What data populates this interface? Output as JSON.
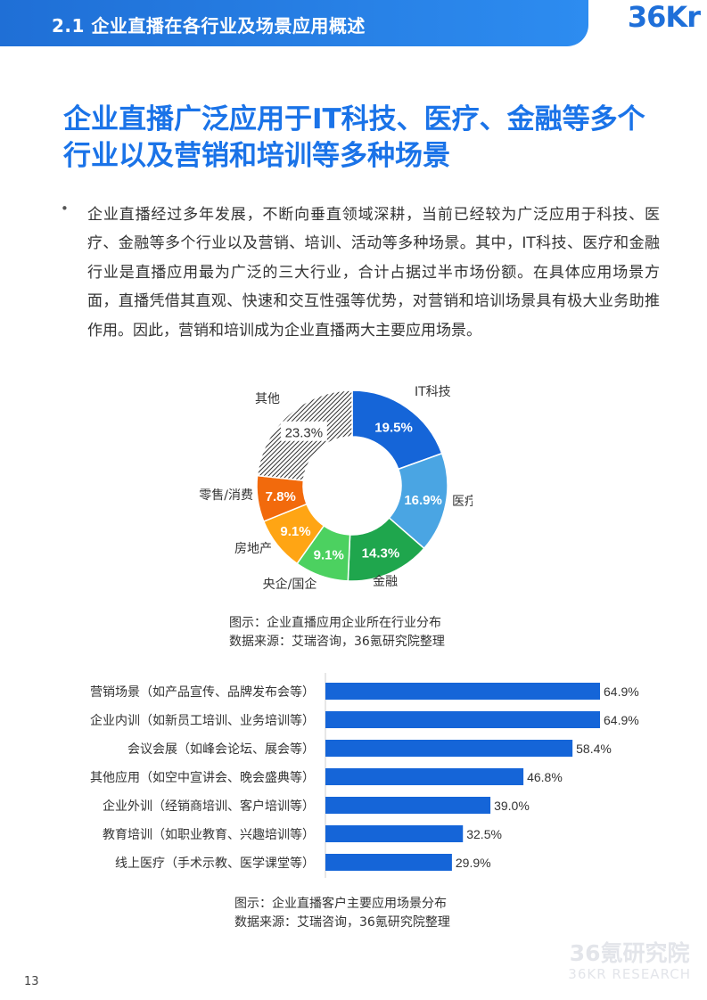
{
  "header": {
    "section_title": "2.1 企业直播在各行业及场景应用概述",
    "logo_text": "36Kr"
  },
  "headline": "企业直播广泛应用于IT科技、医疗、金融等多个行业以及营销和培训等多种场景",
  "bullet": {
    "symbol": "•",
    "text": "企业直播经过多年发展，不断向垂直领域深耕，当前已经较为广泛应用于科技、医疗、金融等多个行业以及营销、培训、活动等多种场景。其中，IT科技、医疗和金融行业是直播应用最为广泛的三大行业，合计占据过半市场份额。在具体应用场景方面，直播凭借其直观、快速和交互性强等优势，对营销和培训场景具有极大业务助推作用。因此，营销和培训成为企业直播两大主要应用场景。"
  },
  "chart_data": [
    {
      "type": "pie",
      "donut": true,
      "categories": [
        "IT科技",
        "医疗",
        "金融",
        "央企/国企",
        "房地产",
        "零售/消费",
        "其他"
      ],
      "values": [
        19.5,
        16.9,
        14.3,
        9.1,
        9.1,
        7.8,
        23.3
      ],
      "value_labels": [
        "19.5%",
        "16.9%",
        "14.3%",
        "9.1%",
        "9.1%",
        "7.8%",
        "23.3%"
      ],
      "colors": [
        "#1565d8",
        "#4aa5e3",
        "#1fa64d",
        "#4cd160",
        "#ffa514",
        "#f26a0c",
        "hatched"
      ],
      "caption": "图示：企业直播应用企业所在行业分布",
      "source": "数据来源：艾瑞咨询，36氪研究院整理"
    },
    {
      "type": "bar",
      "orientation": "horizontal",
      "categories": [
        "营销场景（如产品宣传、品牌发布会等）",
        "企业内训（如新员工培训、业务培训等）",
        "会议会展（如峰会论坛、展会等）",
        "其他应用（如空中宣讲会、晚会盛典等）",
        "企业外训（经销商培训、客户培训等）",
        "教育培训（如职业教育、兴趣培训等）",
        "线上医疗（手术示教、医学课堂等）"
      ],
      "values": [
        64.9,
        64.9,
        58.4,
        46.8,
        39.0,
        32.5,
        29.9
      ],
      "value_labels": [
        "64.9%",
        "64.9%",
        "58.4%",
        "46.8%",
        "39.0%",
        "32.5%",
        "29.9%"
      ],
      "color": "#1565d8",
      "caption": "图示：企业直播客户主要应用场景分布",
      "source": "数据来源：艾瑞咨询，36氪研究院整理"
    }
  ],
  "footer": {
    "page_number": "13",
    "watermark_line1": "36氪研究院",
    "watermark_line2": "36KR RESEARCH"
  }
}
